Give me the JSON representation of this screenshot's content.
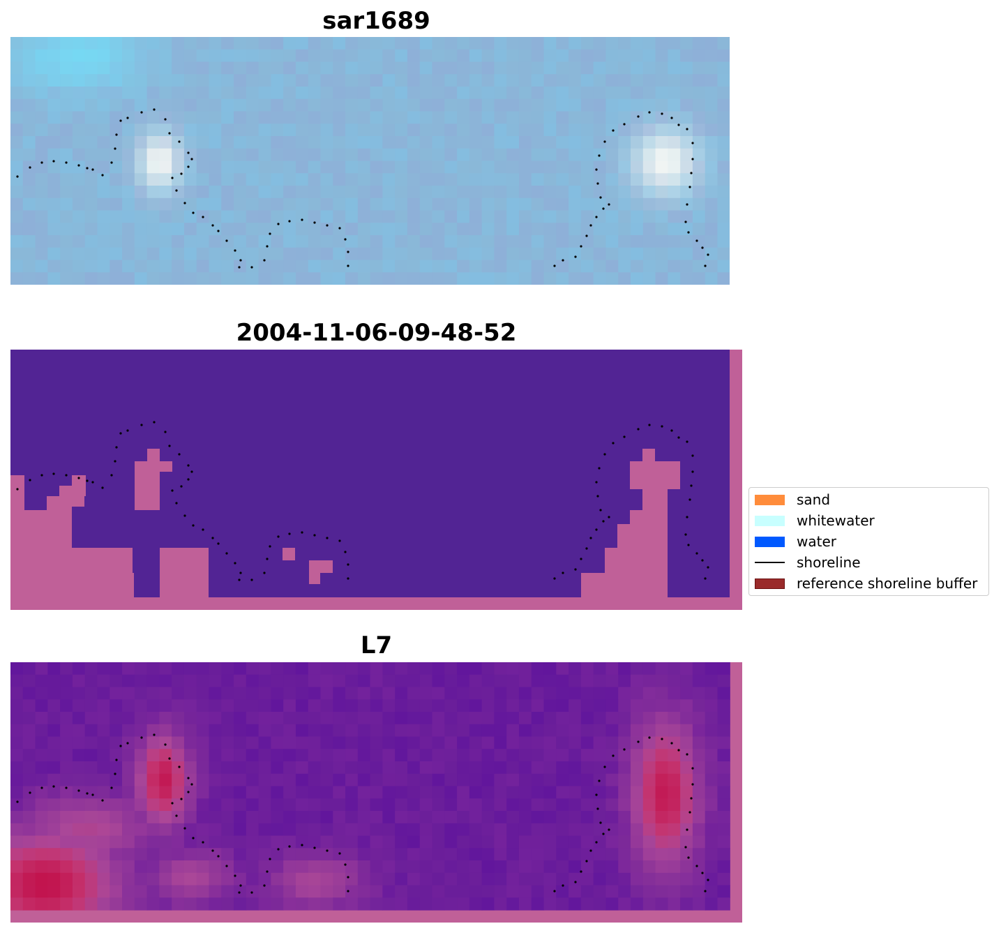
{
  "panels": [
    {
      "title": "sar1689"
    },
    {
      "title": "2004-11-06-09-48-52"
    },
    {
      "title": "L7"
    }
  ],
  "legend": {
    "placement": "center-right",
    "items": [
      {
        "label": "sand",
        "color": "#ff8c3b",
        "kind": "patch"
      },
      {
        "label": "whitewater",
        "color": "#c8ffff",
        "kind": "patch"
      },
      {
        "label": "water",
        "color": "#0059ff",
        "kind": "patch"
      },
      {
        "label": "shoreline",
        "color": "#000000",
        "kind": "line"
      },
      {
        "label": "reference shoreline buffer",
        "color": "#9a2b2b",
        "kind": "patch"
      }
    ]
  },
  "colors": {
    "rgb_base": "#8ab8d8",
    "classified_water": "#522494",
    "classified_buffer": "#c06098",
    "index_base": "#6a1e9a",
    "index_high": "#c0003a",
    "shoreline": "#000000"
  }
}
